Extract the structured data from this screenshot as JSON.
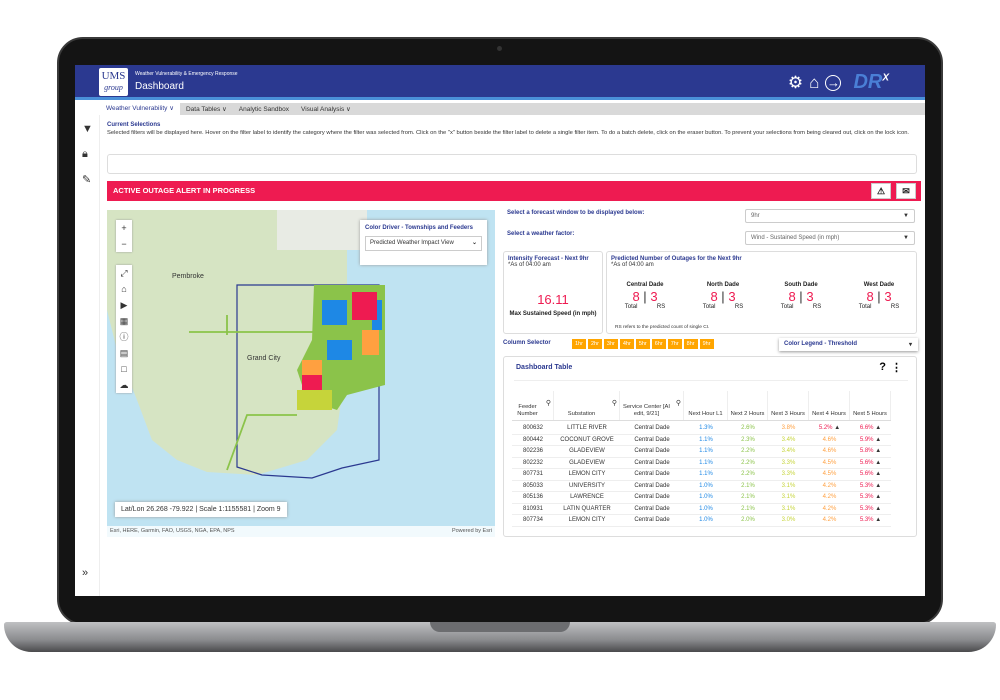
{
  "header": {
    "logo_top": "UMS",
    "logo_bottom": "group",
    "subtitle": "Weather Vulnerability & Emergency Response",
    "title": "Dashboard",
    "brand": "DR",
    "brand_sup": "X"
  },
  "nav": [
    "Weather Vulnerability ∨",
    "Data Tables ∨",
    "Analytic Sandbox",
    "Visual Analysis ∨"
  ],
  "selections": {
    "title": "Current Selections",
    "description": "Selected filters will be displayed here. Hover on the filter label to identify the category where the filter was selected from. Click on the \"x\" button beside the filter label to delete a single filter item. To do a batch delete, click on the eraser button. To prevent your selections from being cleared out, click on the lock icon."
  },
  "alert": {
    "text": "ACTIVE OUTAGE ALERT IN PROGRESS",
    "color": "#ee1b51"
  },
  "map": {
    "labels": [
      "Pembroke",
      "Grand City"
    ],
    "color_driver_label": "Color Driver - Townships and Feeders",
    "color_driver_value": "Predicted Weather Impact View",
    "status": "Lat/Lon 26.268 -79.922 | Scale 1:1155581 | Zoom 9",
    "attribution": "Esri, HERE, Garmin, FAO, USGS, NGA, EPA, NPS",
    "powered": "Powered by Esri"
  },
  "filters": {
    "forecast_label": "Select a forecast window to be displayed below:",
    "forecast_value": "9hr",
    "factor_label": "Select a weather factor:",
    "factor_value": "Wind - Sustained Speed (in mph)"
  },
  "intensity": {
    "title": "Intensity Forecast - Next 9hr",
    "asof": "*As of 04:00 am",
    "value": "16.11",
    "caption": "Max Sustained Speed (in mph)"
  },
  "outages": {
    "title": "Predicted Number of Outages for the Next 9hr",
    "asof": "*As of 04:00 am",
    "note": "RS refers to the predicted count of single CI.",
    "total_label": "Total",
    "rs_label": "RS",
    "regions": [
      {
        "name": "Central Dade",
        "total": "8",
        "rs": "3"
      },
      {
        "name": "North Dade",
        "total": "8",
        "rs": "3"
      },
      {
        "name": "South Dade",
        "total": "8",
        "rs": "3"
      },
      {
        "name": "West Dade",
        "total": "8",
        "rs": "3"
      }
    ]
  },
  "column_selector": {
    "label": "Column Selector",
    "hours": [
      "1hr",
      "2hr",
      "3hr",
      "4hr",
      "5hr",
      "6hr",
      "7hr",
      "8hr",
      "9hr"
    ]
  },
  "color_legend": "Color Legend - Threshold",
  "table": {
    "title": "Dashboard Table",
    "headers": [
      "Feeder Number",
      "Substation",
      "Service Center [AI edit, 9/21]",
      "Next Hour L1",
      "Next 2 Hours",
      "Next 3 Hours",
      "Next 4 Hours",
      "Next 5 Hours"
    ],
    "rows": [
      [
        "800632",
        "LITTLE RIVER",
        "Central Dade",
        "1.3%",
        "2.6%",
        "3.8%",
        "5.2%",
        "6.6%"
      ],
      [
        "800442",
        "COCONUT GROVE",
        "Central Dade",
        "1.1%",
        "2.3%",
        "3.4%",
        "4.6%",
        "5.9%"
      ],
      [
        "802236",
        "GLADEVIEW",
        "Central Dade",
        "1.1%",
        "2.2%",
        "3.4%",
        "4.6%",
        "5.8%"
      ],
      [
        "802232",
        "GLADEVIEW",
        "Central Dade",
        "1.1%",
        "2.2%",
        "3.3%",
        "4.5%",
        "5.6%"
      ],
      [
        "807731",
        "LEMON CITY",
        "Central Dade",
        "1.1%",
        "2.2%",
        "3.3%",
        "4.5%",
        "5.6%"
      ],
      [
        "805033",
        "UNIVERSITY",
        "Central Dade",
        "1.0%",
        "2.1%",
        "3.1%",
        "4.2%",
        "5.3%"
      ],
      [
        "805136",
        "LAWRENCE",
        "Central Dade",
        "1.0%",
        "2.1%",
        "3.1%",
        "4.2%",
        "5.3%"
      ],
      [
        "810931",
        "LATIN QUARTER",
        "Central Dade",
        "1.0%",
        "2.1%",
        "3.1%",
        "4.2%",
        "5.3%"
      ],
      [
        "807734",
        "LEMON CITY",
        "Central Dade",
        "1.0%",
        "2.0%",
        "3.0%",
        "4.2%",
        "5.3%"
      ]
    ]
  },
  "colors": {
    "blue": "#1e88e5",
    "green": "#8bc34a",
    "yellow": "#c6d43a",
    "orange": "#ffa040",
    "red": "#ee1b51"
  }
}
